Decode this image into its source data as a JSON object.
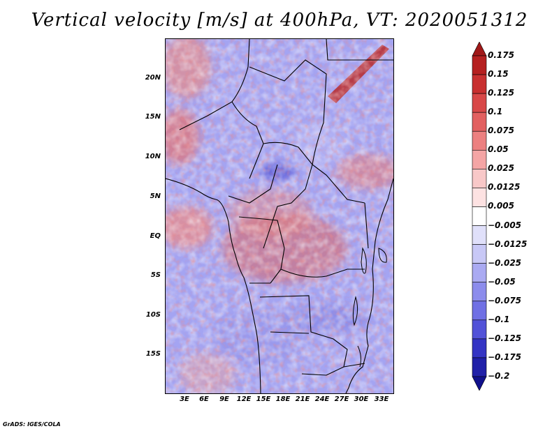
{
  "title": "Vertical velocity [m/s] at 400hPa, VT: 2020051312",
  "map": {
    "lat_labels": [
      "20N",
      "15N",
      "10N",
      "5N",
      "EQ",
      "5S",
      "10S",
      "15S"
    ],
    "lon_labels": [
      "3E",
      "6E",
      "9E",
      "12E",
      "15E",
      "18E",
      "21E",
      "24E",
      "27E",
      "30E",
      "33E"
    ]
  },
  "colorbar": {
    "labels": [
      "0.175",
      "0.15",
      "0.125",
      "0.1",
      "0.075",
      "0.05",
      "0.025",
      "0.0125",
      "0.005",
      "−0.005",
      "−0.0125",
      "−0.025",
      "−0.05",
      "−0.075",
      "−0.1",
      "−0.125",
      "−0.175",
      "−0.2"
    ],
    "colors": [
      "#a01818",
      "#b52020",
      "#c83030",
      "#d84848",
      "#e26060",
      "#ec8080",
      "#f4a5a5",
      "#f8c8c8",
      "#fde2e2",
      "#ffffff",
      "#e0e0fa",
      "#c8c8f6",
      "#aaaaf2",
      "#8c8cec",
      "#7070e4",
      "#5252d8",
      "#3434c4",
      "#2020a8",
      "#10108c"
    ]
  },
  "footer": "GrADS: IGES/COLA"
}
